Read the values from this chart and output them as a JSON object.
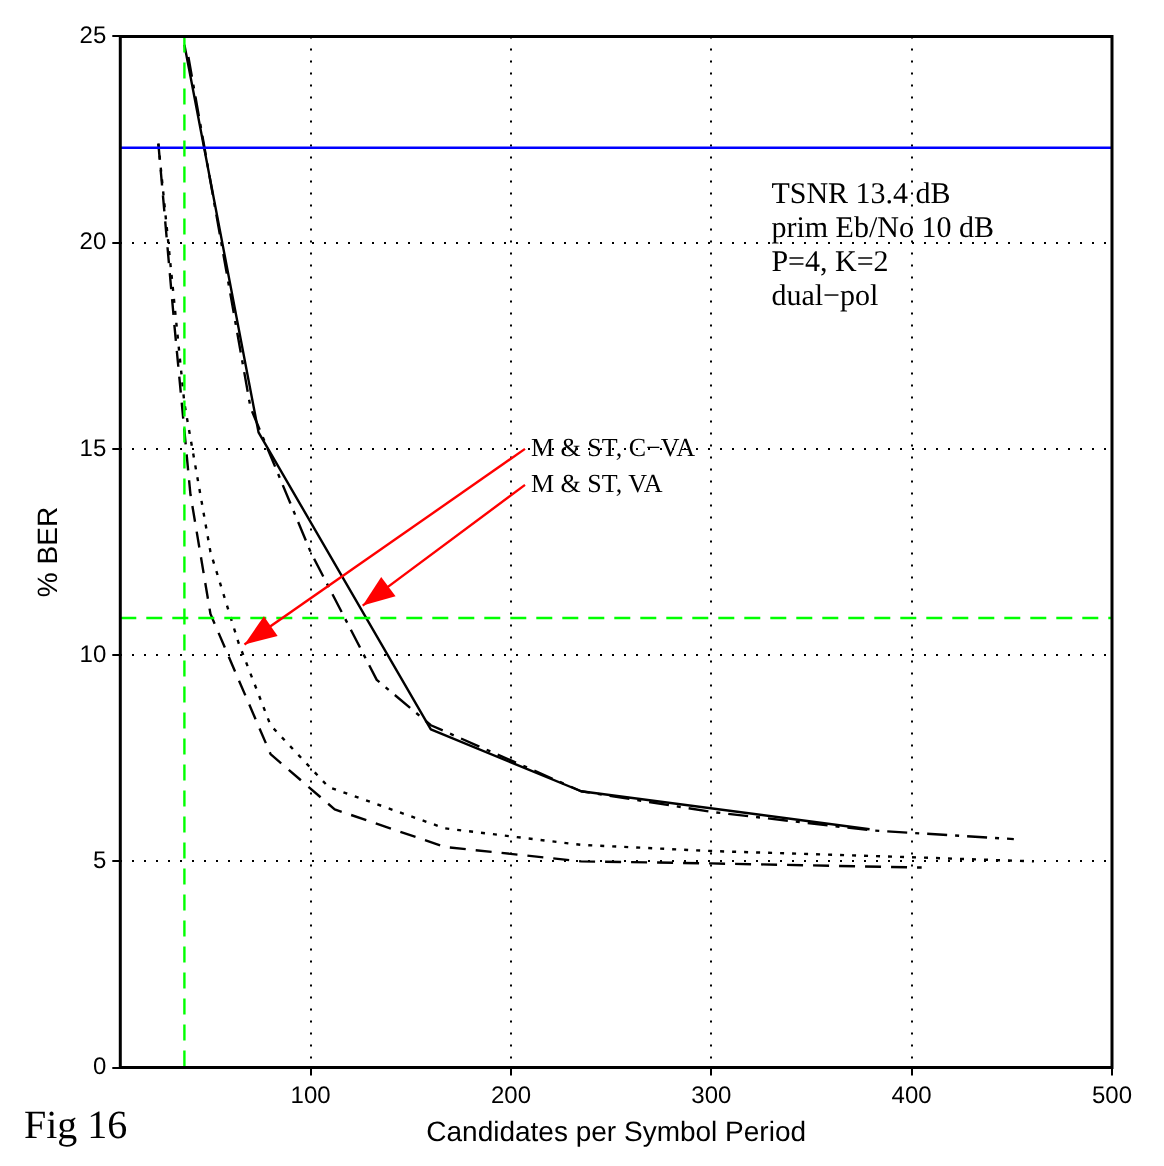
{
  "chart_data": {
    "type": "line",
    "xlabel": "Candidates per Symbol Period",
    "ylabel": "% BER",
    "xlim": [
      5,
      500
    ],
    "ylim": [
      0,
      25
    ],
    "xticks": [
      100,
      200,
      300,
      400,
      500
    ],
    "yticks": [
      0,
      5,
      10,
      15,
      20,
      25
    ],
    "grid": true,
    "series": [
      {
        "color": "#000000",
        "line_style": "solid",
        "x": [
          37,
          74,
          160,
          235,
          379
        ],
        "values": [
          24.8,
          15.4,
          8.2,
          6.7,
          5.78
        ]
      },
      {
        "color": "#000000",
        "line_style": "dashdot",
        "x": [
          39,
          70,
          100,
          133,
          160,
          235,
          300,
          380,
          451
        ],
        "values": [
          24.5,
          16,
          12.5,
          9.4,
          8.3,
          6.7,
          6.2,
          5.75,
          5.54
        ]
      },
      {
        "color": "#000000",
        "line_style": "dashed",
        "x": [
          24,
          32,
          40,
          50,
          61,
          80,
          112,
          167,
          235,
          300,
          405
        ],
        "values": [
          22.4,
          18,
          13.9,
          11,
          9.75,
          7.6,
          6.26,
          5.35,
          5.0,
          4.95,
          4.85
        ]
      },
      {
        "color": "#000000",
        "line_style": "dotted",
        "x": [
          24,
          37,
          50,
          64,
          80,
          109,
          167,
          235,
          300,
          400,
          461
        ],
        "values": [
          22.4,
          16.1,
          12.5,
          10.3,
          8.3,
          6.8,
          5.8,
          5.4,
          5.25,
          5.1,
          5.0
        ]
      }
    ],
    "ref_lines": [
      {
        "axis": "y",
        "value": 22.3,
        "color": "#0000ff",
        "line_style": "solid"
      },
      {
        "axis": "y",
        "value": 10.9,
        "color": "#00ff00",
        "line_style": "dashed"
      },
      {
        "axis": "x",
        "value": 37,
        "color": "#00ff00",
        "line_style": "dashed"
      }
    ],
    "annotations": [
      {
        "text": "M & ST, C−VA",
        "x": 67,
        "y": 10.26
      },
      {
        "text": "M & ST, VA",
        "x": 126,
        "y": 11.2
      },
      "TSNR 13.4 dB",
      "prim Eb/No 10 dB",
      "P=4, K=2",
      "dual−pol",
      "Fig 16"
    ]
  }
}
